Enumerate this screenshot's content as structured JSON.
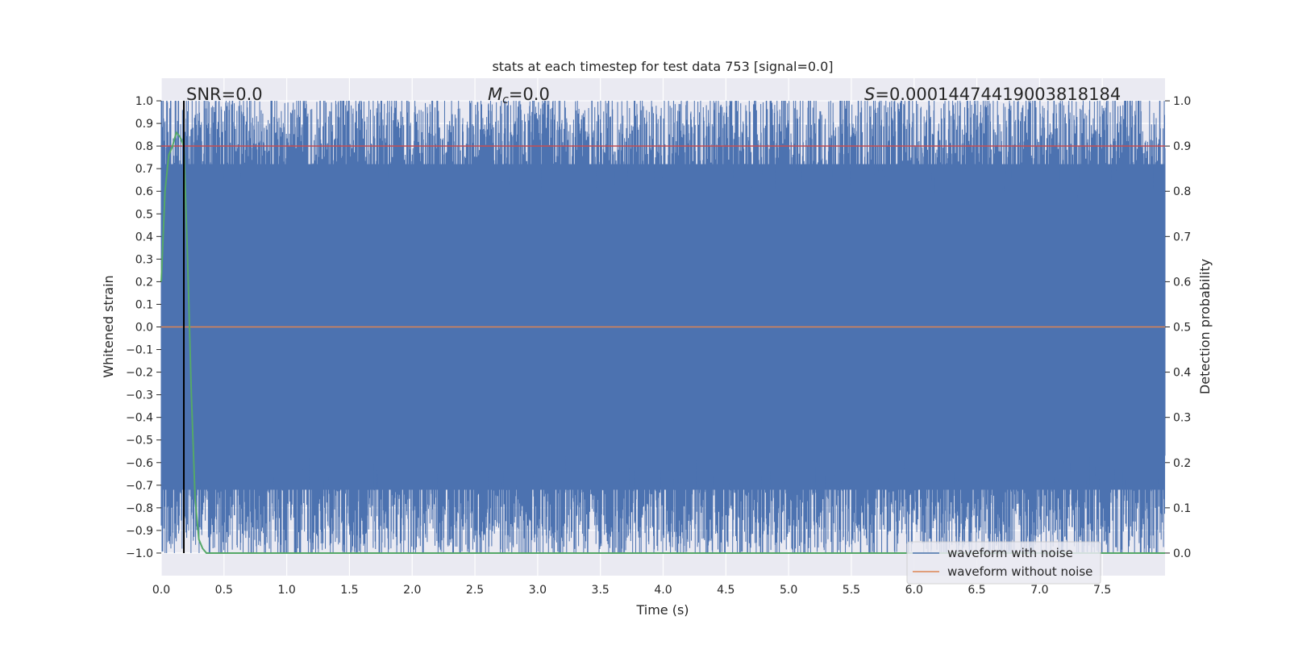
{
  "chart_data": {
    "type": "line",
    "title": "stats at each timestep for test data 753 [signal=0.0]",
    "xlabel": "Time (s)",
    "ylabel_left": "Whitened strain",
    "ylabel_right": "Detection probability",
    "xlim": [
      0.0,
      8.0
    ],
    "ylim_left": [
      -1.1,
      1.1
    ],
    "ylim_right": [
      -0.05,
      1.05
    ],
    "x_ticks": [
      "0.0",
      "0.5",
      "1.0",
      "1.5",
      "2.0",
      "2.5",
      "3.0",
      "3.5",
      "4.0",
      "4.5",
      "5.0",
      "5.5",
      "6.0",
      "6.5",
      "7.0",
      "7.5"
    ],
    "x_tick_values": [
      0.0,
      0.5,
      1.0,
      1.5,
      2.0,
      2.5,
      3.0,
      3.5,
      4.0,
      4.5,
      5.0,
      5.5,
      6.0,
      6.5,
      7.0,
      7.5
    ],
    "y_left_ticks": [
      "1.0",
      "0.9",
      "0.8",
      "0.7",
      "0.6",
      "0.5",
      "0.4",
      "0.3",
      "0.2",
      "0.1",
      "0.0",
      "−0.1",
      "−0.2",
      "−0.3",
      "−0.4",
      "−0.5",
      "−0.6",
      "−0.7",
      "−0.8",
      "−0.9",
      "−1.0"
    ],
    "y_left_tick_values": [
      1.0,
      0.9,
      0.8,
      0.7,
      0.6,
      0.5,
      0.4,
      0.3,
      0.2,
      0.1,
      0.0,
      -0.1,
      -0.2,
      -0.3,
      -0.4,
      -0.5,
      -0.6,
      -0.7,
      -0.8,
      -0.9,
      -1.0
    ],
    "y_right_ticks": [
      "1.0",
      "0.9",
      "0.8",
      "0.7",
      "0.6",
      "0.5",
      "0.4",
      "0.3",
      "0.2",
      "0.1",
      "0.0"
    ],
    "y_right_tick_values": [
      1.0,
      0.9,
      0.8,
      0.7,
      0.6,
      0.5,
      0.4,
      0.3,
      0.2,
      0.1,
      0.0
    ],
    "grid": true,
    "legend_placement": "bottom-right",
    "annotations": {
      "snr": "SNR=0.0",
      "mc_symbol": "M",
      "mc_subscript": "c",
      "mc_value": "=0.0",
      "s_symbol": "S",
      "s_value": "=0.0001447441900381818­4"
    },
    "series": [
      {
        "name": "waveform with noise",
        "color": "#4c72b0",
        "description_values": {
          "min": -1.0,
          "max": 1.0,
          "duration_s": 8.0
        }
      },
      {
        "name": "waveform without noise",
        "color": "#dd8452",
        "values": {
          "x": [
            0.0,
            8.0
          ],
          "y": [
            0.0,
            0.0
          ]
        }
      },
      {
        "name": "",
        "color": "#55a868",
        "axis": "right",
        "x": [
          0.0,
          0.03,
          0.06,
          0.09,
          0.12,
          0.15,
          0.18,
          0.21,
          0.24,
          0.27,
          0.3,
          0.33,
          0.36,
          0.4,
          8.0
        ],
        "y": [
          0.6,
          0.8,
          0.88,
          0.9,
          0.93,
          0.92,
          0.9,
          0.65,
          0.35,
          0.12,
          0.03,
          0.01,
          0.0,
          0.0,
          0.0
        ]
      }
    ],
    "threshold_line": {
      "axis": "left",
      "y": 0.8,
      "color": "#c44e52"
    },
    "marker_line": {
      "x": 0.18,
      "color": "#000000"
    }
  }
}
